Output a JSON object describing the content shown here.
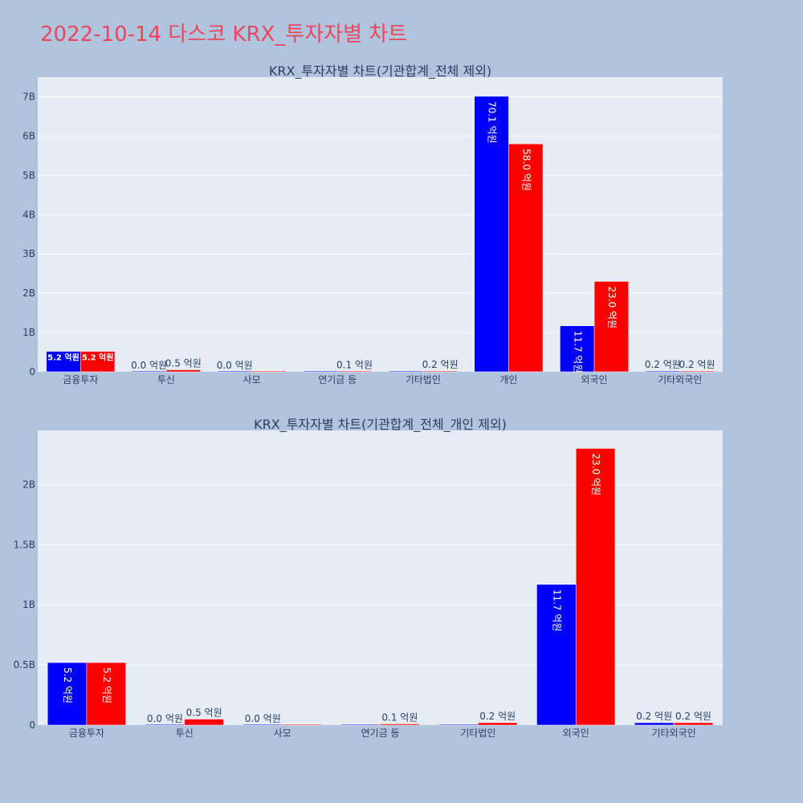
{
  "page_title": "2022-10-14 다스코 KRX_투자자별 차트",
  "colors": {
    "buy": "#0000ff",
    "sell": "#ff0000",
    "plot_bg": "#e5ecf6",
    "page_bg": "#b0c4de",
    "title": "#e8475f"
  },
  "chart_data": [
    {
      "type": "bar",
      "title": "KRX_투자자별 차트(기관합계_전체 제외)",
      "categories": [
        "금융투자",
        "투신",
        "사모",
        "연기금 등",
        "기타법인",
        "개인",
        "외국인",
        "기타외국인"
      ],
      "series": [
        {
          "values": [
            520000000,
            0,
            0,
            0,
            0,
            7010000000,
            1170000000,
            20000000
          ],
          "labels": [
            "5.2 억원",
            "0.0 억원",
            "0.0 억원",
            "",
            "",
            "70.1 억원",
            "11.7 억원",
            "0.2 억원"
          ]
        },
        {
          "values": [
            520000000,
            50000000,
            0,
            10000000,
            20000000,
            5800000000,
            2300000000,
            20000000
          ],
          "labels": [
            "5.2 억원",
            "0.5 억원",
            "",
            "0.1 억원",
            "0.2 억원",
            "58.0 억원",
            "23.0 억원",
            "0.2 억원"
          ]
        }
      ],
      "ylim": [
        0,
        7500000000
      ],
      "yticks": [
        0,
        1000000000,
        2000000000,
        3000000000,
        4000000000,
        5000000000,
        6000000000,
        7000000000
      ],
      "yticklabels": [
        "0",
        "1B",
        "2B",
        "3B",
        "4B",
        "5B",
        "6B",
        "7B"
      ],
      "xlabel": "",
      "ylabel": "",
      "grid": true
    },
    {
      "type": "bar",
      "title": "KRX_투자자별 차트(기관합계_전체_개인 제외)",
      "categories": [
        "금융투자",
        "투신",
        "사모",
        "연기금 등",
        "기타법인",
        "외국인",
        "기타외국인"
      ],
      "series": [
        {
          "values": [
            520000000,
            0,
            0,
            0,
            0,
            1170000000,
            20000000
          ],
          "labels": [
            "5.2 억원",
            "0.0 억원",
            "0.0 억원",
            "",
            "",
            "11.7 억원",
            "0.2 억원"
          ]
        },
        {
          "values": [
            520000000,
            50000000,
            0,
            10000000,
            20000000,
            2300000000,
            20000000
          ],
          "labels": [
            "5.2 억원",
            "0.5 억원",
            "",
            "0.1 억원",
            "0.2 억원",
            "23.0 억원",
            "0.2 억원"
          ]
        }
      ],
      "ylim": [
        0,
        2450000000
      ],
      "yticks": [
        0,
        500000000,
        1000000000,
        1500000000,
        2000000000
      ],
      "yticklabels": [
        "0",
        "0.5B",
        "1B",
        "1.5B",
        "2B"
      ],
      "xlabel": "",
      "ylabel": "",
      "grid": true
    }
  ]
}
